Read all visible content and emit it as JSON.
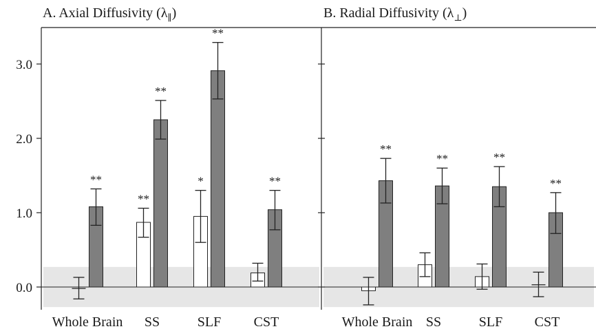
{
  "chart_data": [
    {
      "type": "bar",
      "title": "A. Axial Diffusivity (λ∥)",
      "title_main": "A. Axial Diffusivity (λ",
      "title_sub": "∥",
      "title_end": ")",
      "categories": [
        "Whole Brain",
        "SS",
        "SLF",
        "CST"
      ],
      "ylim": [
        -0.25,
        3.5
      ],
      "yticks": [
        0.0,
        1.0,
        2.0,
        3.0
      ],
      "ytick_labels": [
        "0.0",
        "1.0",
        "2.0",
        "3.0"
      ],
      "reference_band": [
        -0.27,
        0.27
      ],
      "series": [
        {
          "style": "open",
          "values": [
            -0.02,
            0.87,
            0.95,
            0.19
          ],
          "err_low": [
            -0.16,
            0.67,
            0.6,
            0.08
          ],
          "err_high": [
            0.13,
            1.06,
            1.3,
            0.32
          ],
          "annotations": [
            "",
            "**",
            "*",
            ""
          ]
        },
        {
          "style": "filled",
          "values": [
            1.08,
            2.25,
            2.91,
            1.04
          ],
          "err_low": [
            0.83,
            1.99,
            2.53,
            0.77
          ],
          "err_high": [
            1.32,
            2.51,
            3.29,
            1.3
          ],
          "annotations": [
            "**",
            "**",
            "**",
            "**"
          ]
        }
      ]
    },
    {
      "type": "bar",
      "title": "B. Radial Diffusivity (λ⊥)",
      "title_main": "B. Radial Diffusivity (λ",
      "title_sub": "⊥",
      "title_end": ")",
      "categories": [
        "Whole Brain",
        "SS",
        "SLF",
        "CST"
      ],
      "ylim": [
        -0.25,
        3.5
      ],
      "yticks": [
        0.0,
        1.0,
        2.0,
        3.0
      ],
      "reference_band": [
        -0.27,
        0.27
      ],
      "series": [
        {
          "style": "open",
          "values": [
            -0.05,
            0.3,
            0.14,
            0.03
          ],
          "err_low": [
            -0.24,
            0.14,
            -0.03,
            -0.13
          ],
          "err_high": [
            0.13,
            0.46,
            0.31,
            0.2
          ],
          "annotations": [
            "",
            "",
            "",
            ""
          ]
        },
        {
          "style": "filled",
          "values": [
            1.43,
            1.36,
            1.35,
            1.0
          ],
          "err_low": [
            1.13,
            1.12,
            1.08,
            0.72
          ],
          "err_high": [
            1.73,
            1.6,
            1.62,
            1.27
          ],
          "annotations": [
            "**",
            "**",
            "**",
            "**"
          ]
        }
      ]
    }
  ],
  "colors": {
    "open_bar_fill": "#ffffff",
    "filled_bar_fill": "#7f7f7f",
    "bar_stroke": "#222222",
    "band_fill": "#e6e6e6",
    "axis": "#222222"
  }
}
